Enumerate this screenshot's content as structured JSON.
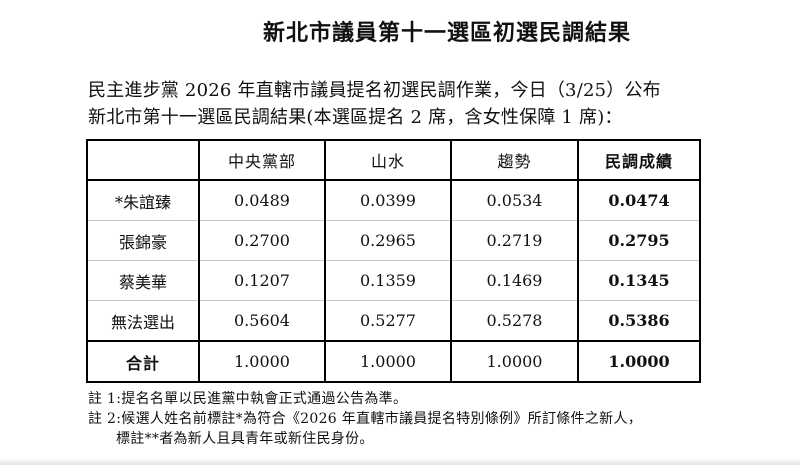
{
  "document": {
    "title": "新北市議員第十一選區初選民調結果",
    "intro_line1": "民主進步黨 2026 年直轄市議員提名初選民調作業，今日（3/25）公布",
    "intro_line2": "新北市第十一選區民調結果(本選區提名 2 席，含女性保障 1 席)："
  },
  "table": {
    "columns": [
      "",
      "中央黨部",
      "山水",
      "趨勢",
      "民調成績"
    ],
    "rows": [
      {
        "label": "*朱誼臻",
        "values": [
          "0.0489",
          "0.0399",
          "0.0534",
          "0.0474"
        ]
      },
      {
        "label": "張錦豪",
        "values": [
          "0.2700",
          "0.2965",
          "0.2719",
          "0.2795"
        ]
      },
      {
        "label": "蔡美華",
        "values": [
          "0.1207",
          "0.1359",
          "0.1469",
          "0.1345"
        ]
      },
      {
        "label": "無法選出",
        "values": [
          "0.5604",
          "0.5277",
          "0.5278",
          "0.5386"
        ]
      },
      {
        "label": "合計",
        "values": [
          "1.0000",
          "1.0000",
          "1.0000",
          "1.0000"
        ]
      }
    ]
  },
  "notes": {
    "note1": "註 1:提名名單以民進黨中執會正式通過公告為準。",
    "note2_line1": "註 2:候選人姓名前標註*為符合《2026 年直轄市議員提名特別條例》所訂條件之新人，",
    "note2_line2": "標註**者為新人且具青年或新住民身份。"
  },
  "colors": {
    "text": "#111111",
    "table_border": "#000000",
    "row_separator": "#c4c4c4",
    "background": "#ffffff"
  }
}
